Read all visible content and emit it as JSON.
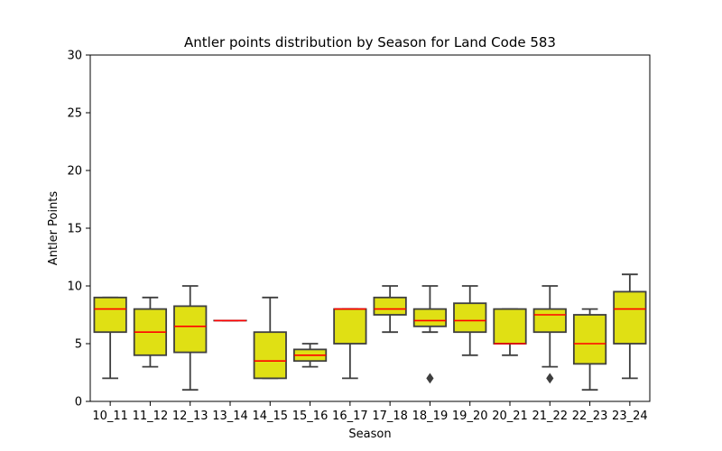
{
  "chart_data": {
    "type": "box",
    "title": "Antler points distribution by Season for Land Code 583",
    "xlabel": "Season",
    "ylabel": "Antler Points",
    "ylim": [
      0,
      30
    ],
    "yticks": [
      0,
      5,
      10,
      15,
      20,
      25,
      30
    ],
    "grid": false,
    "colors": {
      "box_fill": "#e0e014",
      "box_edge": "#3f3f3f",
      "median": "#ff0000",
      "whisker": "#3f3f3f"
    },
    "categories": [
      "10_11",
      "11_12",
      "12_13",
      "13_14",
      "14_15",
      "15_16",
      "16_17",
      "17_18",
      "18_19",
      "19_20",
      "20_21",
      "21_22",
      "22_23",
      "23_24"
    ],
    "boxes": [
      {
        "min": 2,
        "q1": 6,
        "median": 8,
        "q3": 9,
        "max": 9,
        "outliers": []
      },
      {
        "min": 3,
        "q1": 4,
        "median": 6,
        "q3": 8,
        "max": 9,
        "outliers": []
      },
      {
        "min": 1,
        "q1": 4.25,
        "median": 6.5,
        "q3": 8.25,
        "max": 10,
        "outliers": []
      },
      {
        "min": 7,
        "q1": 7,
        "median": 7,
        "q3": 7,
        "max": 7,
        "outliers": []
      },
      {
        "min": 2,
        "q1": 2,
        "median": 3.5,
        "q3": 6,
        "max": 9,
        "outliers": []
      },
      {
        "min": 3,
        "q1": 3.5,
        "median": 4,
        "q3": 4.5,
        "max": 5,
        "outliers": []
      },
      {
        "min": 2,
        "q1": 5,
        "median": 8,
        "q3": 8,
        "max": 8,
        "outliers": []
      },
      {
        "min": 6,
        "q1": 7.5,
        "median": 8,
        "q3": 9,
        "max": 10,
        "outliers": []
      },
      {
        "min": 6,
        "q1": 6.5,
        "median": 7,
        "q3": 8,
        "max": 10,
        "outliers": [
          2
        ]
      },
      {
        "min": 4,
        "q1": 6,
        "median": 7,
        "q3": 8.5,
        "max": 10,
        "outliers": []
      },
      {
        "min": 4,
        "q1": 5,
        "median": 5,
        "q3": 8,
        "max": 8,
        "outliers": []
      },
      {
        "min": 3,
        "q1": 6,
        "median": 7.5,
        "q3": 8,
        "max": 10,
        "outliers": [
          2
        ]
      },
      {
        "min": 1,
        "q1": 3.25,
        "median": 5,
        "q3": 7.5,
        "max": 8,
        "outliers": []
      },
      {
        "min": 2,
        "q1": 5,
        "median": 8,
        "q3": 9.5,
        "max": 11,
        "outliers": []
      }
    ]
  }
}
